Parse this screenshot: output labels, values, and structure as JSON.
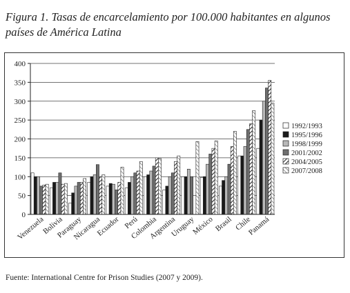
{
  "caption": "Figura 1. Tasas de encarcelamiento por 100.000 habitantes en algunos países de América Latina",
  "source": "Fuente: International Centre for Prison Studies (2007 y 2009).",
  "chart_data": {
    "type": "bar",
    "title": "Figura 1. Tasas de encarcelamiento por 100.000 habitantes en algunos países de América Latina",
    "xlabel": "",
    "ylabel": "",
    "ylim": [
      0,
      400
    ],
    "yticks": [
      0,
      50,
      100,
      150,
      200,
      250,
      300,
      350,
      400
    ],
    "grid": "horizontal",
    "legend_position": "right",
    "categories": [
      "Venezuela",
      "Bolivia",
      "Paraguay",
      "Nicaragua",
      "Ecuador",
      "Perú",
      "Colombia",
      "Argentina",
      "Uruguay",
      "México",
      "Brasil",
      "Chile",
      "Panamá"
    ],
    "series": [
      {
        "name": "1992/1993",
        "pattern": "white",
        "values": [
          110,
          70,
          30,
          85,
          75,
          70,
          100,
          65,
          100,
          98,
          75,
          155,
          175
        ]
      },
      {
        "name": "1995/1996",
        "pattern": "black",
        "values": [
          100,
          85,
          57,
          100,
          82,
          85,
          105,
          75,
          100,
          100,
          90,
          155,
          250
        ]
      },
      {
        "name": "1998/1999",
        "pattern": "light-gray",
        "values": [
          100,
          85,
          75,
          105,
          80,
          100,
          115,
          100,
          120,
          133,
          100,
          180,
          300
        ]
      },
      {
        "name": "2001/2002",
        "pattern": "gray",
        "values": [
          75,
          110,
          85,
          132,
          65,
          110,
          128,
          110,
          100,
          160,
          133,
          225,
          335
        ]
      },
      {
        "name": "2004/2005",
        "pattern": "dark-hatch",
        "values": [
          78,
          80,
          85,
          100,
          85,
          115,
          150,
          140,
          0,
          175,
          180,
          240,
          355
        ]
      },
      {
        "name": "2007/2008",
        "pattern": "light-hatch",
        "values": [
          80,
          82,
          95,
          105,
          125,
          140,
          148,
          155,
          193,
          195,
          220,
          275,
          295
        ]
      }
    ],
    "colors": {
      "white": "#ffffff",
      "black": "#1a1a1a",
      "light_gray": "#b8b8b8",
      "gray": "#6e6e6e",
      "axis": "#222222"
    }
  }
}
